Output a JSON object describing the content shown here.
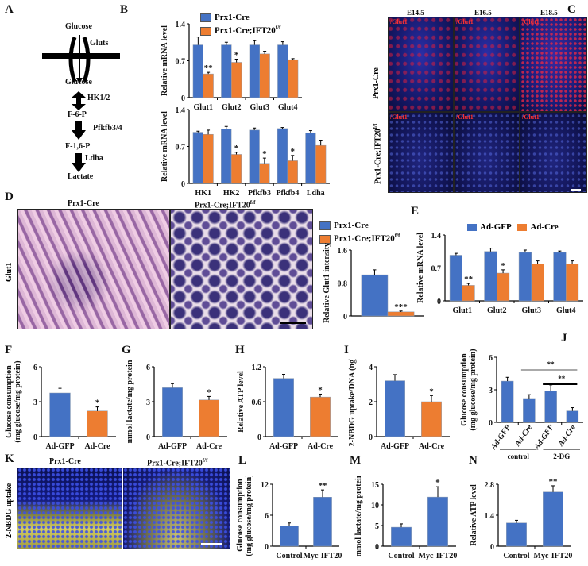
{
  "panels": {
    "A": "A",
    "B": "B",
    "C": "C",
    "D": "D",
    "E": "E",
    "F": "F",
    "G": "G",
    "H": "H",
    "I": "I",
    "J": "J",
    "K": "K",
    "L": "L",
    "M": "M",
    "N": "N"
  },
  "pathway": {
    "glucose_out": "Glucose",
    "gluts": "Gluts",
    "glucose_in": "Glucose",
    "hk": "HK1/2",
    "f6p": "F-6-P",
    "pfkfb": "Pfkfb3/4",
    "f16p": "F-1,6-P",
    "ldha": "Ldha",
    "lactate": "Lactate"
  },
  "panelC": {
    "stages": [
      "E14.5",
      "E16.5",
      "E18.5"
    ],
    "rows": [
      "Prx1-Cre",
      "Prx1-Cre;IFT20"
    ],
    "row_sup": "f/f",
    "stain": "/Glut1"
  },
  "panelD": {
    "cols": [
      "Prx1-Cre",
      "Prx1-Cre;IFT20"
    ],
    "col_sup": "f/f",
    "row": "Glut1"
  },
  "panelK": {
    "cols": [
      "Prx1-Cre",
      "Prx1-Cre;IFT20"
    ],
    "col_sup": "f/f",
    "row": "2-NBDG uptake"
  },
  "legend_prx": {
    "a": "Prx1-Cre",
    "b": "Prx1-Cre;IFT20",
    "b_sup": "f/f"
  },
  "legend_ad": {
    "a": "Ad-GFP",
    "b": "Ad-Cre"
  },
  "colors": {
    "blue": "#4472c4",
    "orange": "#ed7d31"
  },
  "chart_data": [
    {
      "id": "B1",
      "type": "bar",
      "ylabel": "Relative mRNA level",
      "ylim": [
        0,
        1.4
      ],
      "yticks": [
        "0",
        "0.7",
        "1.4"
      ],
      "categories": [
        "Glut1",
        "Glut2",
        "Glut3",
        "Glut4"
      ],
      "series": [
        {
          "name": "Prx1-Cre",
          "color": "#4472c4",
          "values": [
            1.0,
            1.0,
            1.0,
            1.0
          ],
          "errors": [
            0.15,
            0.05,
            0.08,
            0.06
          ]
        },
        {
          "name": "Prx1-Cre;IFT20f/f",
          "color": "#ed7d31",
          "values": [
            0.45,
            0.67,
            0.83,
            0.72
          ],
          "errors": [
            0.03,
            0.06,
            0.05,
            0.02
          ],
          "sig": [
            "**",
            "*",
            "",
            ""
          ]
        }
      ]
    },
    {
      "id": "B2",
      "type": "bar",
      "ylabel": "Relative mRNA level",
      "ylim": [
        0,
        1.4
      ],
      "yticks": [
        "0",
        "0.7",
        "1.4"
      ],
      "categories": [
        "HK1",
        "HK2",
        "Pfkfb3",
        "Pfkfb4",
        "Ldha"
      ],
      "series": [
        {
          "name": "Prx1-Cre",
          "color": "#4472c4",
          "values": [
            0.97,
            1.03,
            1.01,
            1.04,
            0.96
          ],
          "errors": [
            0.02,
            0.05,
            0.04,
            0.02,
            0.04
          ]
        },
        {
          "name": "Prx1-Cre;IFT20f/f",
          "color": "#ed7d31",
          "values": [
            0.93,
            0.55,
            0.38,
            0.43,
            0.72
          ],
          "errors": [
            0.08,
            0.04,
            0.1,
            0.1,
            0.1
          ],
          "sig": [
            "",
            "*",
            "*",
            "*",
            ""
          ]
        }
      ]
    },
    {
      "id": "D",
      "type": "bar",
      "ylabel": "Relative Glut1 intensity",
      "ylim": [
        0,
        1.6
      ],
      "yticks": [
        "0",
        "0.8",
        "1.6"
      ],
      "categories": [
        ""
      ],
      "series": [
        {
          "name": "Prx1-Cre",
          "color": "#4472c4",
          "values": [
            1.0
          ],
          "errors": [
            0.12
          ]
        },
        {
          "name": "Prx1-Cre;IFT20f/f",
          "color": "#ed7d31",
          "values": [
            0.1
          ],
          "errors": [
            0.02
          ],
          "sig": [
            "***"
          ]
        }
      ]
    },
    {
      "id": "E",
      "type": "bar",
      "ylabel": "Relative mRNA level",
      "ylim": [
        0,
        1.4
      ],
      "yticks": [
        "0",
        "0.7",
        "1.4"
      ],
      "categories": [
        "Glut1",
        "Glut2",
        "Glut3",
        "Glut4"
      ],
      "series": [
        {
          "name": "Ad-GFP",
          "color": "#4472c4",
          "values": [
            0.97,
            1.05,
            1.03,
            1.03
          ],
          "errors": [
            0.04,
            0.07,
            0.05,
            0.03
          ]
        },
        {
          "name": "Ad-Cre",
          "color": "#ed7d31",
          "values": [
            0.33,
            0.59,
            0.78,
            0.78
          ],
          "errors": [
            0.04,
            0.07,
            0.07,
            0.07
          ],
          "sig": [
            "**",
            "*",
            "",
            ""
          ]
        }
      ]
    },
    {
      "id": "F",
      "type": "bar",
      "ylabel": "Glucose consumption",
      "ylabel2": "(mg glucose/mg protein)",
      "ylim": [
        0,
        6
      ],
      "yticks": [
        "0",
        "3",
        "6"
      ],
      "categories": [
        "Ad-GFP",
        "Ad-Cre"
      ],
      "series": [
        {
          "name": "value",
          "colors": [
            "#4472c4",
            "#ed7d31"
          ],
          "values": [
            3.75,
            2.2
          ],
          "errors": [
            0.4,
            0.35
          ],
          "sig": [
            "",
            "*"
          ]
        }
      ]
    },
    {
      "id": "G",
      "type": "bar",
      "ylabel": "mmol lactate/mg protein",
      "ylim": [
        0,
        6
      ],
      "yticks": [
        "0",
        "3",
        "6"
      ],
      "categories": [
        "Ad-GFP",
        "Ad-Cre"
      ],
      "series": [
        {
          "name": "value",
          "colors": [
            "#4472c4",
            "#ed7d31"
          ],
          "values": [
            4.2,
            3.15
          ],
          "errors": [
            0.35,
            0.3
          ],
          "sig": [
            "",
            "*"
          ]
        }
      ]
    },
    {
      "id": "H",
      "type": "bar",
      "ylabel": "Relative ATP level",
      "ylim": [
        0,
        1.2
      ],
      "yticks": [
        "0",
        "0.6",
        "1.2"
      ],
      "categories": [
        "Ad-GFP",
        "Ad-Cre"
      ],
      "series": [
        {
          "name": "value",
          "colors": [
            "#4472c4",
            "#ed7d31"
          ],
          "values": [
            1.0,
            0.68
          ],
          "errors": [
            0.07,
            0.05
          ],
          "sig": [
            "",
            "*"
          ]
        }
      ]
    },
    {
      "id": "I",
      "type": "bar",
      "ylabel": "2-NBDG uptake/DNA (ng)",
      "ylim": [
        0,
        4
      ],
      "yticks": [
        "0",
        "2",
        "4"
      ],
      "categories": [
        "Ad-GFP",
        "Ad-Cre"
      ],
      "series": [
        {
          "name": "value",
          "colors": [
            "#4472c4",
            "#ed7d31"
          ],
          "values": [
            3.2,
            2.0
          ],
          "errors": [
            0.35,
            0.35
          ],
          "sig": [
            "",
            "*"
          ]
        }
      ]
    },
    {
      "id": "J",
      "type": "bar",
      "ylabel": "Glucose consumption",
      "ylabel2": "(mg glucose/mg protein)",
      "ylim": [
        0,
        6
      ],
      "yticks": [
        "0",
        "3",
        "6"
      ],
      "categories": [
        "Ad-GFP",
        "Ad-Cre",
        "Ad-GFP",
        "Ad-Cre"
      ],
      "rotate": true,
      "groups": [
        "control",
        "2-DG"
      ],
      "brackets": [
        {
          "from": 1,
          "to": 3,
          "label": "**"
        },
        {
          "from": 2,
          "to": 3,
          "label": "**"
        }
      ],
      "series": [
        {
          "name": "value",
          "colors": [
            "#4472c4",
            "#4472c4",
            "#4472c4",
            "#4472c4"
          ],
          "values": [
            3.8,
            2.2,
            2.9,
            1.05
          ],
          "errors": [
            0.35,
            0.35,
            0.55,
            0.3
          ]
        }
      ]
    },
    {
      "id": "L",
      "type": "bar",
      "ylabel": "Glucose consumption",
      "ylabel2": "(mg glucose/mg protein)",
      "ylim": [
        0,
        12
      ],
      "yticks": [
        "0",
        "6",
        "12"
      ],
      "categories": [
        "Control",
        "Myc-IFT20"
      ],
      "series": [
        {
          "name": "value",
          "colors": [
            "#4472c4",
            "#4472c4"
          ],
          "values": [
            3.9,
            9.5
          ],
          "errors": [
            0.6,
            1.4
          ],
          "sig": [
            "",
            "**"
          ]
        }
      ]
    },
    {
      "id": "M",
      "type": "bar",
      "ylabel": "mmol lactate/mg protein",
      "ylim": [
        0,
        15
      ],
      "yticks": [
        "0",
        "5",
        "10",
        "15"
      ],
      "categories": [
        "Control",
        "Myc-IFT20"
      ],
      "series": [
        {
          "name": "value",
          "colors": [
            "#4472c4",
            "#4472c4"
          ],
          "values": [
            4.6,
            11.9
          ],
          "errors": [
            0.8,
            2.5
          ],
          "sig": [
            "",
            "*"
          ]
        }
      ]
    },
    {
      "id": "N",
      "type": "bar",
      "ylabel": "Relative ATP level",
      "ylim": [
        0,
        2.8
      ],
      "yticks": [
        "0",
        "1.4",
        "2.8"
      ],
      "categories": [
        "Control",
        "Myc-IFT20"
      ],
      "series": [
        {
          "name": "value",
          "colors": [
            "#4472c4",
            "#4472c4"
          ],
          "values": [
            1.05,
            2.45
          ],
          "errors": [
            0.12,
            0.28
          ],
          "sig": [
            "",
            "**"
          ]
        }
      ]
    }
  ]
}
